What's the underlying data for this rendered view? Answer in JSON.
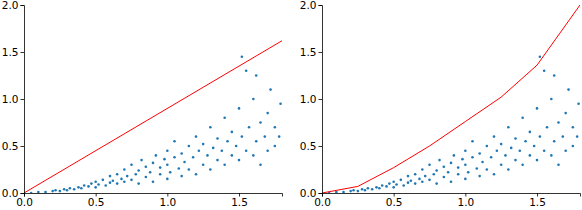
{
  "chart_data": [
    {
      "type": "scatter",
      "xlim": [
        0,
        1.8
      ],
      "ylim": [
        0,
        2
      ],
      "xticks": [
        {
          "value": 0,
          "label": "0.0"
        },
        0.5,
        {
          "value": 1,
          "label": "1.0"
        },
        1.5
      ],
      "yticks": [
        {
          "value": 0,
          "label": "0.0"
        },
        0.5,
        {
          "value": 1,
          "label": "1.0"
        },
        1.5,
        {
          "value": 2,
          "label": "2.0"
        }
      ],
      "series": [
        {
          "type": "scatter",
          "color": "#1f77b4",
          "x": [
            0.05,
            0.1,
            0.15,
            0.2,
            0.22,
            0.25,
            0.28,
            0.3,
            0.32,
            0.35,
            0.38,
            0.4,
            0.42,
            0.45,
            0.47,
            0.5,
            0.5,
            0.52,
            0.55,
            0.57,
            0.6,
            0.6,
            0.62,
            0.65,
            0.65,
            0.68,
            0.7,
            0.7,
            0.72,
            0.75,
            0.75,
            0.78,
            0.8,
            0.8,
            0.82,
            0.85,
            0.85,
            0.88,
            0.9,
            0.9,
            0.92,
            0.95,
            0.95,
            0.98,
            1.0,
            1.0,
            1.0,
            1.02,
            1.05,
            1.05,
            1.08,
            1.1,
            1.1,
            1.12,
            1.15,
            1.15,
            1.18,
            1.2,
            1.2,
            1.22,
            1.25,
            1.25,
            1.28,
            1.3,
            1.3,
            1.32,
            1.35,
            1.35,
            1.38,
            1.4,
            1.4,
            1.42,
            1.45,
            1.45,
            1.48,
            1.5,
            1.5,
            1.52,
            1.55,
            1.55,
            1.57,
            1.6,
            1.6,
            1.62,
            1.65,
            1.65,
            1.68,
            1.7,
            1.7,
            1.72,
            1.75,
            1.75,
            1.78,
            1.79,
            1.52,
            1.62
          ],
          "values": [
            0.0,
            0.01,
            0.01,
            0.02,
            0.03,
            0.02,
            0.04,
            0.03,
            0.05,
            0.04,
            0.06,
            0.05,
            0.08,
            0.07,
            0.1,
            0.06,
            0.12,
            0.09,
            0.14,
            0.08,
            0.11,
            0.18,
            0.13,
            0.1,
            0.2,
            0.15,
            0.12,
            0.25,
            0.18,
            0.14,
            0.3,
            0.2,
            0.1,
            0.24,
            0.35,
            0.17,
            0.28,
            0.22,
            0.12,
            0.32,
            0.4,
            0.2,
            0.27,
            0.36,
            0.15,
            0.3,
            0.45,
            0.22,
            0.38,
            0.55,
            0.26,
            0.18,
            0.42,
            0.33,
            0.5,
            0.25,
            0.38,
            0.2,
            0.6,
            0.45,
            0.3,
            0.52,
            0.4,
            0.25,
            0.7,
            0.48,
            0.35,
            0.58,
            0.45,
            0.3,
            0.8,
            0.55,
            0.4,
            0.65,
            0.5,
            0.35,
            0.9,
            0.6,
            0.45,
            1.3,
            0.7,
            0.4,
            1.0,
            0.55,
            0.75,
            0.3,
            0.6,
            0.85,
            0.45,
            1.1,
            0.5,
            0.7,
            0.6,
            0.95,
            1.45,
            1.25
          ]
        },
        {
          "type": "line",
          "color": "#ff0000",
          "x": [
            0,
            1.8
          ],
          "values": [
            0,
            1.62
          ]
        }
      ]
    },
    {
      "type": "scatter",
      "xlim": [
        0,
        1.8
      ],
      "ylim": [
        0,
        2
      ],
      "xticks": [
        {
          "value": 0,
          "label": "0.0"
        },
        0.5,
        {
          "value": 1,
          "label": "1.0"
        },
        1.5
      ],
      "yticks": [
        {
          "value": 0,
          "label": "0.0"
        },
        0.5,
        {
          "value": 1,
          "label": "1.0"
        },
        1.5,
        {
          "value": 2,
          "label": "2.0"
        }
      ],
      "series": [
        {
          "type": "scatter",
          "color": "#1f77b4",
          "x": [
            0.05,
            0.1,
            0.15,
            0.2,
            0.22,
            0.25,
            0.28,
            0.3,
            0.32,
            0.35,
            0.38,
            0.4,
            0.42,
            0.45,
            0.47,
            0.5,
            0.5,
            0.52,
            0.55,
            0.57,
            0.6,
            0.6,
            0.62,
            0.65,
            0.65,
            0.68,
            0.7,
            0.7,
            0.72,
            0.75,
            0.75,
            0.78,
            0.8,
            0.8,
            0.82,
            0.85,
            0.85,
            0.88,
            0.9,
            0.9,
            0.92,
            0.95,
            0.95,
            0.98,
            1.0,
            1.0,
            1.0,
            1.02,
            1.05,
            1.05,
            1.08,
            1.1,
            1.1,
            1.12,
            1.15,
            1.15,
            1.18,
            1.2,
            1.2,
            1.22,
            1.25,
            1.25,
            1.28,
            1.3,
            1.3,
            1.32,
            1.35,
            1.35,
            1.38,
            1.4,
            1.4,
            1.42,
            1.45,
            1.45,
            1.48,
            1.5,
            1.5,
            1.52,
            1.55,
            1.55,
            1.57,
            1.6,
            1.6,
            1.62,
            1.65,
            1.65,
            1.68,
            1.7,
            1.7,
            1.72,
            1.75,
            1.75,
            1.78,
            1.79,
            1.52,
            1.62
          ],
          "values": [
            0.0,
            0.01,
            0.01,
            0.02,
            0.03,
            0.02,
            0.04,
            0.03,
            0.05,
            0.04,
            0.06,
            0.05,
            0.08,
            0.07,
            0.1,
            0.06,
            0.12,
            0.09,
            0.14,
            0.08,
            0.11,
            0.18,
            0.13,
            0.1,
            0.2,
            0.15,
            0.12,
            0.25,
            0.18,
            0.14,
            0.3,
            0.2,
            0.1,
            0.24,
            0.35,
            0.17,
            0.28,
            0.22,
            0.12,
            0.32,
            0.4,
            0.2,
            0.27,
            0.36,
            0.15,
            0.3,
            0.45,
            0.22,
            0.38,
            0.55,
            0.26,
            0.18,
            0.42,
            0.33,
            0.5,
            0.25,
            0.38,
            0.2,
            0.6,
            0.45,
            0.3,
            0.52,
            0.4,
            0.25,
            0.7,
            0.48,
            0.35,
            0.58,
            0.45,
            0.3,
            0.8,
            0.55,
            0.4,
            0.65,
            0.5,
            0.35,
            0.9,
            0.6,
            0.45,
            1.3,
            0.7,
            0.4,
            1.0,
            0.55,
            0.75,
            0.3,
            0.6,
            0.85,
            0.45,
            1.1,
            0.5,
            0.7,
            0.6,
            0.95,
            1.45,
            1.25
          ]
        },
        {
          "type": "line",
          "color": "#ff0000",
          "x": [
            0,
            0.25,
            0.5,
            0.75,
            1.0,
            1.25,
            1.5,
            1.8
          ],
          "values": [
            0,
            0.07,
            0.27,
            0.5,
            0.76,
            1.02,
            1.36,
            2.0
          ]
        }
      ]
    }
  ]
}
